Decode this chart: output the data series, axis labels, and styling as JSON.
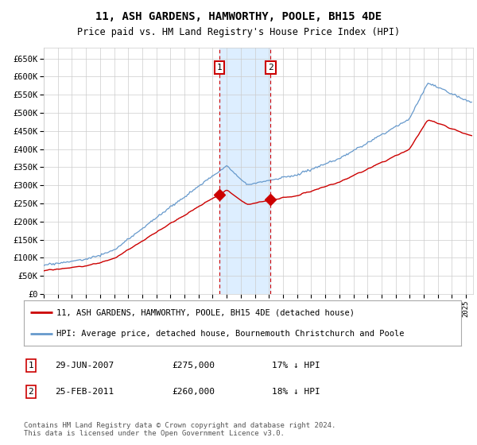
{
  "title": "11, ASH GARDENS, HAMWORTHY, POOLE, BH15 4DE",
  "subtitle": "Price paid vs. HM Land Registry's House Price Index (HPI)",
  "ylim": [
    0,
    680000
  ],
  "ytick_vals": [
    0,
    50000,
    100000,
    150000,
    200000,
    250000,
    300000,
    350000,
    400000,
    450000,
    500000,
    550000,
    600000,
    650000
  ],
  "xlim_start": 1995.0,
  "xlim_end": 2025.5,
  "sale1_date": 2007.49,
  "sale1_price": 275000,
  "sale2_date": 2011.12,
  "sale2_price": 260000,
  "sale1_label": "1",
  "sale2_label": "2",
  "legend_line1": "11, ASH GARDENS, HAMWORTHY, POOLE, BH15 4DE (detached house)",
  "legend_line2": "HPI: Average price, detached house, Bournemouth Christchurch and Poole",
  "table_row1": [
    "1",
    "29-JUN-2007",
    "£275,000",
    "17% ↓ HPI"
  ],
  "table_row2": [
    "2",
    "25-FEB-2011",
    "£260,000",
    "18% ↓ HPI"
  ],
  "footnote": "Contains HM Land Registry data © Crown copyright and database right 2024.\nThis data is licensed under the Open Government Licence v3.0.",
  "line_red_color": "#cc0000",
  "line_blue_color": "#6699cc",
  "shade_color": "#ddeeff",
  "grid_color": "#cccccc",
  "background_color": "#ffffff"
}
